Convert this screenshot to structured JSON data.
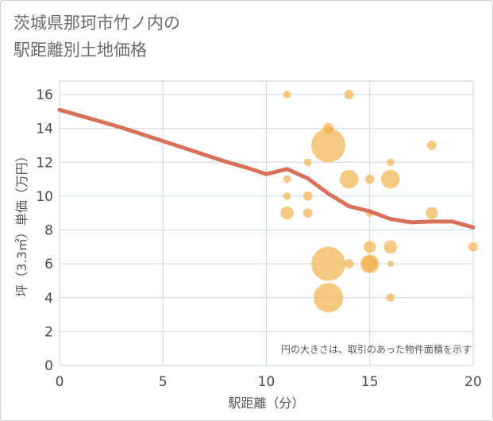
{
  "title_line1": "茨城県那珂市竹ノ内の",
  "title_line2": "駅距離別土地価格",
  "chart_data": {
    "type": "scatter",
    "title": "茨城県那珂市竹ノ内の駅距離別土地価格",
    "xlabel": "駅距離（分）",
    "ylabel": "坪（3.3㎡）単価（万円）",
    "xlim": [
      0,
      20
    ],
    "ylim": [
      0,
      16.8
    ],
    "xticks": [
      0,
      5,
      10,
      15,
      20
    ],
    "yticks": [
      0,
      2,
      4,
      6,
      8,
      10,
      12,
      14,
      16
    ],
    "grid": true,
    "annotation": "円の大きさは、取引のあった物件面積を示す",
    "trend_line": {
      "name": "trend",
      "color": "#d9705a",
      "x": [
        0,
        1,
        2,
        3,
        4,
        5,
        6,
        7,
        8,
        9,
        10,
        11,
        12,
        13,
        14,
        15,
        16,
        17,
        18,
        19,
        20
      ],
      "y": [
        15.1,
        14.75,
        14.4,
        14.05,
        13.65,
        13.25,
        12.85,
        12.45,
        12.05,
        11.7,
        11.3,
        11.6,
        11.05,
        10.15,
        9.4,
        9.1,
        8.65,
        8.45,
        8.5,
        8.5,
        8.15
      ]
    },
    "bubbles": {
      "color": "#f2b24e",
      "points": [
        {
          "x": 11,
          "y": 16,
          "size": 1
        },
        {
          "x": 11,
          "y": 11,
          "size": 1
        },
        {
          "x": 11,
          "y": 10,
          "size": 1
        },
        {
          "x": 11,
          "y": 9,
          "size": 3
        },
        {
          "x": 12,
          "y": 12,
          "size": 1
        },
        {
          "x": 12,
          "y": 10,
          "size": 1.5
        },
        {
          "x": 12,
          "y": 9,
          "size": 1.5
        },
        {
          "x": 13,
          "y": 14,
          "size": 2
        },
        {
          "x": 13,
          "y": 13.9,
          "size": 1
        },
        {
          "x": 13,
          "y": 13,
          "size": 20
        },
        {
          "x": 13,
          "y": 6,
          "size": 20
        },
        {
          "x": 13,
          "y": 4,
          "size": 15
        },
        {
          "x": 14,
          "y": 16,
          "size": 1.5
        },
        {
          "x": 14,
          "y": 11,
          "size": 6
        },
        {
          "x": 14,
          "y": 6,
          "size": 1.5
        },
        {
          "x": 15,
          "y": 11,
          "size": 1.5
        },
        {
          "x": 15,
          "y": 9,
          "size": 1
        },
        {
          "x": 15,
          "y": 7,
          "size": 2.5
        },
        {
          "x": 15,
          "y": 6,
          "size": 6
        },
        {
          "x": 15,
          "y": 6,
          "size": 4
        },
        {
          "x": 16,
          "y": 12,
          "size": 1
        },
        {
          "x": 16,
          "y": 11,
          "size": 6
        },
        {
          "x": 16,
          "y": 7,
          "size": 3
        },
        {
          "x": 16,
          "y": 6,
          "size": 0.7
        },
        {
          "x": 16,
          "y": 4,
          "size": 1.2
        },
        {
          "x": 18,
          "y": 13,
          "size": 1.5
        },
        {
          "x": 18,
          "y": 9,
          "size": 2.5
        },
        {
          "x": 20,
          "y": 7,
          "size": 1.5
        }
      ]
    }
  }
}
